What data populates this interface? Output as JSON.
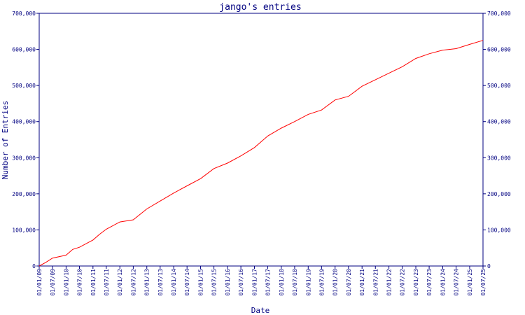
{
  "chart_data": {
    "type": "line",
    "title": "jango's entries",
    "xlabel": "Date",
    "ylabel": "Number of Entries",
    "ylim": [
      0,
      700000
    ],
    "xlim": [
      "2009-01-01",
      "2025-07-01"
    ],
    "grid": false,
    "legend": "none",
    "colors": {
      "axis": "#000080",
      "line": "#ff0000",
      "background": "#ffffff"
    },
    "y_ticks": [
      {
        "value": 0,
        "label": "0"
      },
      {
        "value": 100000,
        "label": "100,000"
      },
      {
        "value": 200000,
        "label": "200,000"
      },
      {
        "value": 300000,
        "label": "300,000"
      },
      {
        "value": 400000,
        "label": "400,000"
      },
      {
        "value": 500000,
        "label": "500,000"
      },
      {
        "value": 600000,
        "label": "600,000"
      },
      {
        "value": 700000,
        "label": "700,000"
      }
    ],
    "x_ticks": [
      {
        "date": "2009-01-01",
        "label": "01/01/09"
      },
      {
        "date": "2009-07-01",
        "label": "01/07/09"
      },
      {
        "date": "2010-01-01",
        "label": "01/01/10"
      },
      {
        "date": "2010-07-01",
        "label": "01/07/10"
      },
      {
        "date": "2011-01-01",
        "label": "01/01/11"
      },
      {
        "date": "2011-07-01",
        "label": "01/07/11"
      },
      {
        "date": "2012-01-01",
        "label": "01/01/12"
      },
      {
        "date": "2012-07-01",
        "label": "01/07/12"
      },
      {
        "date": "2013-01-01",
        "label": "01/01/13"
      },
      {
        "date": "2013-07-01",
        "label": "01/07/13"
      },
      {
        "date": "2014-01-01",
        "label": "01/01/14"
      },
      {
        "date": "2014-07-01",
        "label": "01/07/14"
      },
      {
        "date": "2015-01-01",
        "label": "01/01/15"
      },
      {
        "date": "2015-07-01",
        "label": "01/07/15"
      },
      {
        "date": "2016-01-01",
        "label": "01/01/16"
      },
      {
        "date": "2016-07-01",
        "label": "01/07/16"
      },
      {
        "date": "2017-01-01",
        "label": "01/01/17"
      },
      {
        "date": "2017-07-01",
        "label": "01/07/17"
      },
      {
        "date": "2018-01-01",
        "label": "01/01/18"
      },
      {
        "date": "2018-07-01",
        "label": "01/07/18"
      },
      {
        "date": "2019-01-01",
        "label": "01/01/19"
      },
      {
        "date": "2019-07-01",
        "label": "01/07/19"
      },
      {
        "date": "2020-01-01",
        "label": "01/01/20"
      },
      {
        "date": "2020-07-01",
        "label": "01/07/20"
      },
      {
        "date": "2021-01-01",
        "label": "01/01/21"
      },
      {
        "date": "2021-07-01",
        "label": "01/07/21"
      },
      {
        "date": "2022-01-01",
        "label": "01/01/22"
      },
      {
        "date": "2022-07-01",
        "label": "01/07/22"
      },
      {
        "date": "2023-01-01",
        "label": "01/01/23"
      },
      {
        "date": "2023-07-01",
        "label": "01/07/23"
      },
      {
        "date": "2024-01-01",
        "label": "01/01/24"
      },
      {
        "date": "2024-07-01",
        "label": "01/07/24"
      },
      {
        "date": "2025-01-01",
        "label": "01/01/25"
      },
      {
        "date": "2025-07-01",
        "label": "01/07/25"
      }
    ],
    "series": [
      {
        "x": [
          "2009-01-01",
          "2009-04-01",
          "2009-07-01",
          "2010-01-01",
          "2010-04-01",
          "2010-07-01",
          "2011-01-01",
          "2011-04-01",
          "2011-07-01",
          "2012-01-01",
          "2012-07-01",
          "2013-01-01",
          "2013-07-01",
          "2014-01-01",
          "2014-07-01",
          "2015-01-01",
          "2015-07-01",
          "2016-01-01",
          "2016-07-01",
          "2017-01-01",
          "2017-07-01",
          "2018-01-01",
          "2018-07-01",
          "2019-01-01",
          "2019-07-01",
          "2020-01-01",
          "2020-07-01",
          "2021-01-01",
          "2021-07-01",
          "2022-01-01",
          "2022-07-01",
          "2023-01-01",
          "2023-07-01",
          "2024-01-01",
          "2024-07-01",
          "2025-01-01",
          "2025-07-01"
        ],
        "y": [
          0,
          10000,
          22000,
          30000,
          46000,
          52000,
          72000,
          88000,
          102000,
          122000,
          128000,
          158000,
          180000,
          202000,
          222000,
          242000,
          270000,
          285000,
          305000,
          328000,
          360000,
          382000,
          400000,
          420000,
          432000,
          460000,
          470000,
          498000,
          516000,
          534000,
          552000,
          575000,
          588000,
          598000,
          602000,
          614000,
          625000
        ]
      }
    ]
  }
}
